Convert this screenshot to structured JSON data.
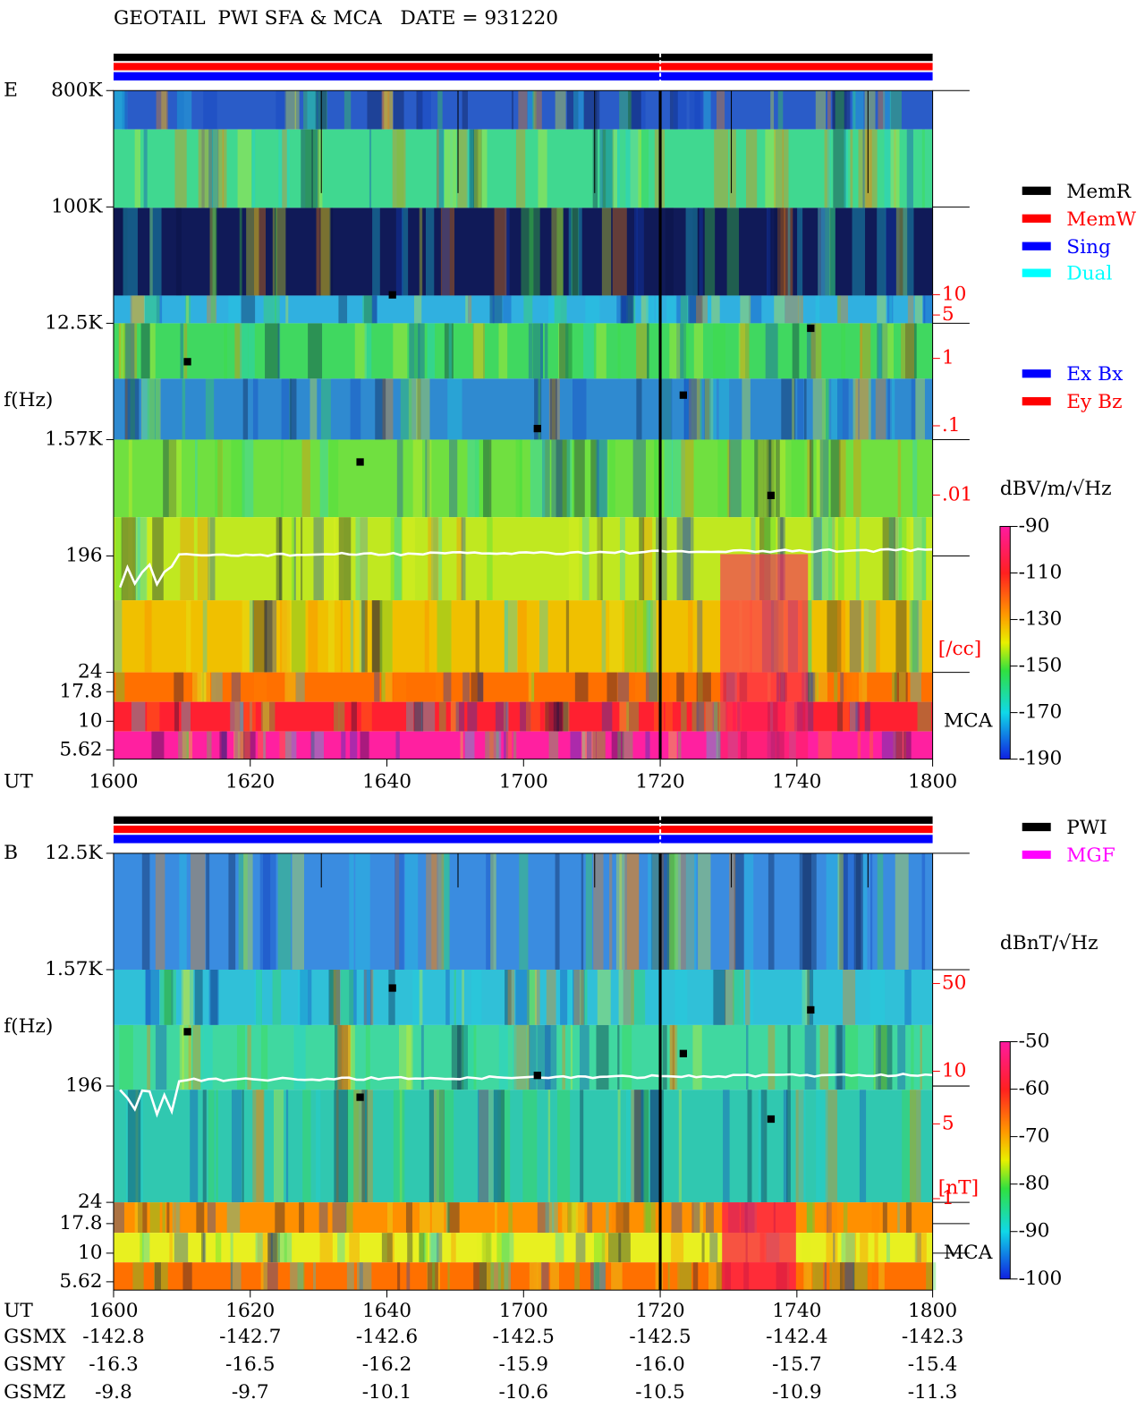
{
  "header": {
    "title": "GEOTAIL  PWI SFA & MCA   DATE = 931220"
  },
  "panels": [
    {
      "name": "E",
      "y_axis_label": "f(Hz)",
      "freq_ticks": [
        "800K",
        "100K",
        "12.5K",
        "1.57K",
        "196",
        "24",
        "17.8",
        "10",
        "5.62"
      ],
      "mca_label": "MCA",
      "x_axis_label": "UT",
      "time_ticks": [
        "1600",
        "1620",
        "1640",
        "1700",
        "1720",
        "1740",
        "1800"
      ],
      "legend": [
        "MemR",
        "MemW",
        "Sing",
        "Dual",
        "Ex Bx",
        "Ey Bz"
      ],
      "side_scale": {
        "ticks": [
          "10",
          "5",
          "1",
          ".1",
          ".01"
        ],
        "unit": "[/cc]"
      },
      "colorbar": {
        "unit": "dBV/m/√Hz",
        "ticks": [
          "-90",
          "-110",
          "-130",
          "-150",
          "-170",
          "-190"
        ]
      }
    },
    {
      "name": "B",
      "y_axis_label": "f(Hz)",
      "freq_ticks": [
        "12.5K",
        "1.57K",
        "196",
        "24",
        "17.8",
        "10",
        "5.62"
      ],
      "mca_label": "MCA",
      "x_axis_label": "UT",
      "time_ticks": [
        "1600",
        "1620",
        "1640",
        "1700",
        "1720",
        "1740",
        "1800"
      ],
      "legend": [
        "PWI",
        "MGF"
      ],
      "side_scale": {
        "ticks": [
          "50",
          "10",
          "5",
          "1"
        ],
        "unit": "[nT]"
      },
      "colorbar": {
        "unit": "dBnT/√Hz",
        "ticks": [
          "-50",
          "-60",
          "-70",
          "-80",
          "-90",
          "-100"
        ]
      }
    }
  ],
  "orbit_table": {
    "rows": [
      {
        "label": "GSMX",
        "values": [
          "-142.8",
          "-142.7",
          "-142.6",
          "-142.5",
          "-142.5",
          "-142.4",
          "-142.3"
        ]
      },
      {
        "label": "GSMY",
        "values": [
          "-16.3",
          "-16.5",
          "-16.2",
          "-15.9",
          "-16.0",
          "-15.7",
          "-15.4"
        ]
      },
      {
        "label": "GSMZ",
        "values": [
          "-9.8",
          "-9.7",
          "-10.1",
          "-10.6",
          "-10.5",
          "-10.9",
          "-11.3"
        ]
      }
    ]
  }
}
